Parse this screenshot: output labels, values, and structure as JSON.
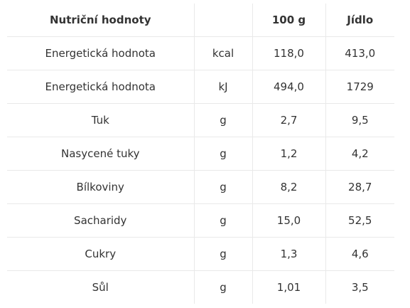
{
  "table": {
    "headers": [
      "Nutriční hodnoty",
      "",
      "100 g",
      "Jídlo"
    ],
    "rows": [
      [
        "Energetická hodnota",
        "kcal",
        "118,0",
        "413,0"
      ],
      [
        "Energetická hodnota",
        "kJ",
        "494,0",
        "1729"
      ],
      [
        "Tuk",
        "g",
        "2,7",
        "9,5"
      ],
      [
        "Nasycené tuky",
        "g",
        "1,2",
        "4,2"
      ],
      [
        "Bílkoviny",
        "g",
        "8,2",
        "28,7"
      ],
      [
        "Sacharidy",
        "g",
        "15,0",
        "52,5"
      ],
      [
        "Cukry",
        "g",
        "1,3",
        "4,6"
      ],
      [
        "Sůl",
        "g",
        "1,01",
        "3,5"
      ]
    ]
  }
}
